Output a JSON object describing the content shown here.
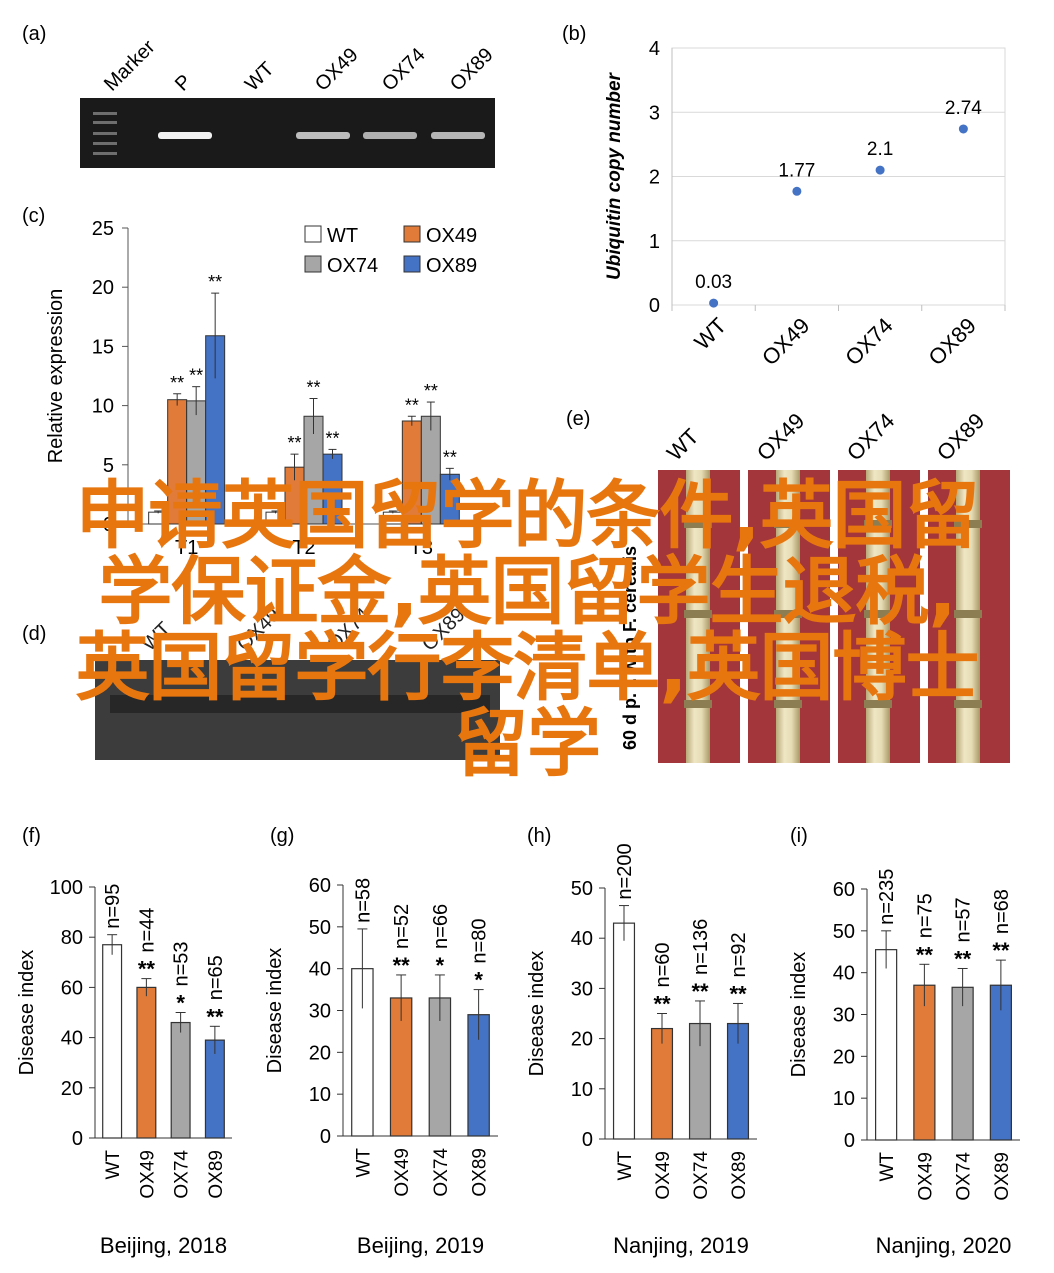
{
  "panels": {
    "a": {
      "label": "(a)",
      "lanes": [
        "Marker",
        "P",
        "WT",
        "OX49",
        "OX74",
        "OX89"
      ]
    },
    "b": {
      "label": "(b)"
    },
    "c": {
      "label": "(c)"
    },
    "d": {
      "label": "(d)",
      "lanes": [
        "WT",
        "OX49",
        "OX74",
        "OX89"
      ]
    },
    "e": {
      "label": "(e)",
      "lanes": [
        "WT",
        "OX49",
        "OX74",
        "OX89"
      ],
      "side_label": "60 d p. i. with F. cerealis"
    },
    "f": {
      "label": "(f)"
    },
    "g": {
      "label": "(g)"
    },
    "h": {
      "label": "(h)"
    },
    "i": {
      "label": "(i)"
    }
  },
  "overlay_text": [
    "申请英国留学的条件,英国留",
    "学保证金,英国留学生退税,",
    "英国留学行李清单,英国博士",
    "留学"
  ],
  "colors": {
    "WT": "#ffffff",
    "OX49": "#e07b39",
    "OX74": "#a6a6a6",
    "OX89": "#4472c4",
    "overlay": "#e8760f"
  },
  "chart_data": [
    {
      "panel": "b",
      "type": "scatter",
      "categories": [
        "WT",
        "OX49",
        "OX74",
        "OX89"
      ],
      "values": [
        0.03,
        1.77,
        2.1,
        2.74
      ],
      "data_labels": [
        "0.03",
        "1.77",
        "2.1",
        "2.74"
      ],
      "ylabel": "Ubiquitin copy number",
      "ylim": [
        0,
        4
      ],
      "yticks": [
        "0",
        "1",
        "2",
        "3",
        "4"
      ],
      "grid": true
    },
    {
      "panel": "c",
      "type": "bar",
      "categories": [
        "T1",
        "T2",
        "T3"
      ],
      "ylabel": "Relative expression",
      "ylim": [
        0,
        25
      ],
      "yticks": [
        "0",
        "5",
        "10",
        "15",
        "20",
        "25"
      ],
      "legend": "top-right",
      "series": [
        {
          "name": "WT",
          "values": [
            1,
            1,
            1
          ],
          "errors": [
            0.1,
            0.1,
            0.1
          ],
          "sig": [
            "",
            "",
            ""
          ]
        },
        {
          "name": "OX49",
          "values": [
            10.5,
            4.8,
            8.7
          ],
          "errors": [
            0.5,
            1.1,
            0.4
          ],
          "sig": [
            "**",
            "**",
            "**"
          ]
        },
        {
          "name": "OX74",
          "values": [
            10.4,
            9.1,
            9.1
          ],
          "errors": [
            1.2,
            1.5,
            1.2
          ],
          "sig": [
            "**",
            "**",
            "**"
          ]
        },
        {
          "name": "OX89",
          "values": [
            15.9,
            5.9,
            4.2
          ],
          "errors": [
            3.6,
            0.4,
            0.5
          ],
          "sig": [
            "**",
            "**",
            "**"
          ]
        }
      ]
    },
    {
      "panel": "f",
      "type": "bar",
      "title": "Beijing, 2018",
      "ylabel": "Disease index",
      "categories": [
        "WT",
        "OX49",
        "OX74",
        "OX89"
      ],
      "ylim": [
        0,
        100
      ],
      "yticks": [
        "0",
        "20",
        "40",
        "60",
        "80",
        "100"
      ],
      "values": [
        77,
        60,
        46,
        39
      ],
      "errors": [
        4,
        3.5,
        4,
        5.5
      ],
      "n_labels": [
        "n=95",
        "n=44",
        "n=53",
        "n=65"
      ],
      "sig": [
        "",
        "**",
        "*",
        "**"
      ]
    },
    {
      "panel": "g",
      "type": "bar",
      "title": "Beijing, 2019",
      "ylabel": "Disease index",
      "categories": [
        "WT",
        "OX49",
        "OX74",
        "OX89"
      ],
      "ylim": [
        0,
        60
      ],
      "yticks": [
        "0",
        "10",
        "20",
        "30",
        "40",
        "50",
        "60"
      ],
      "values": [
        40,
        33,
        33,
        29
      ],
      "errors": [
        9.5,
        5.5,
        5.5,
        6
      ],
      "n_labels": [
        "n=58",
        "n=52",
        "n=66",
        "n=80"
      ],
      "sig": [
        "",
        "**",
        "*",
        "*"
      ]
    },
    {
      "panel": "h",
      "type": "bar",
      "title": "Nanjing, 2019",
      "ylabel": "Disease index",
      "categories": [
        "WT",
        "OX49",
        "OX74",
        "OX89"
      ],
      "ylim": [
        0,
        50
      ],
      "yticks": [
        "0",
        "10",
        "20",
        "30",
        "40",
        "50"
      ],
      "values": [
        43,
        22,
        23,
        23
      ],
      "errors": [
        3.5,
        3,
        4.5,
        4
      ],
      "n_labels": [
        "n=200",
        "n=60",
        "n=136",
        "n=92"
      ],
      "sig": [
        "",
        "**",
        "**",
        "**"
      ]
    },
    {
      "panel": "i",
      "type": "bar",
      "title": "Nanjing, 2020",
      "ylabel": "Disease index",
      "categories": [
        "WT",
        "OX49",
        "OX74",
        "OX89"
      ],
      "ylim": [
        0,
        60
      ],
      "yticks": [
        "0",
        "10",
        "20",
        "30",
        "40",
        "50",
        "60"
      ],
      "values": [
        45.5,
        37,
        36.5,
        37
      ],
      "errors": [
        4.5,
        5,
        4.5,
        6
      ],
      "n_labels": [
        "n=235",
        "n=75",
        "n=57",
        "n=68"
      ],
      "sig": [
        "",
        "**",
        "**",
        "**"
      ]
    }
  ]
}
